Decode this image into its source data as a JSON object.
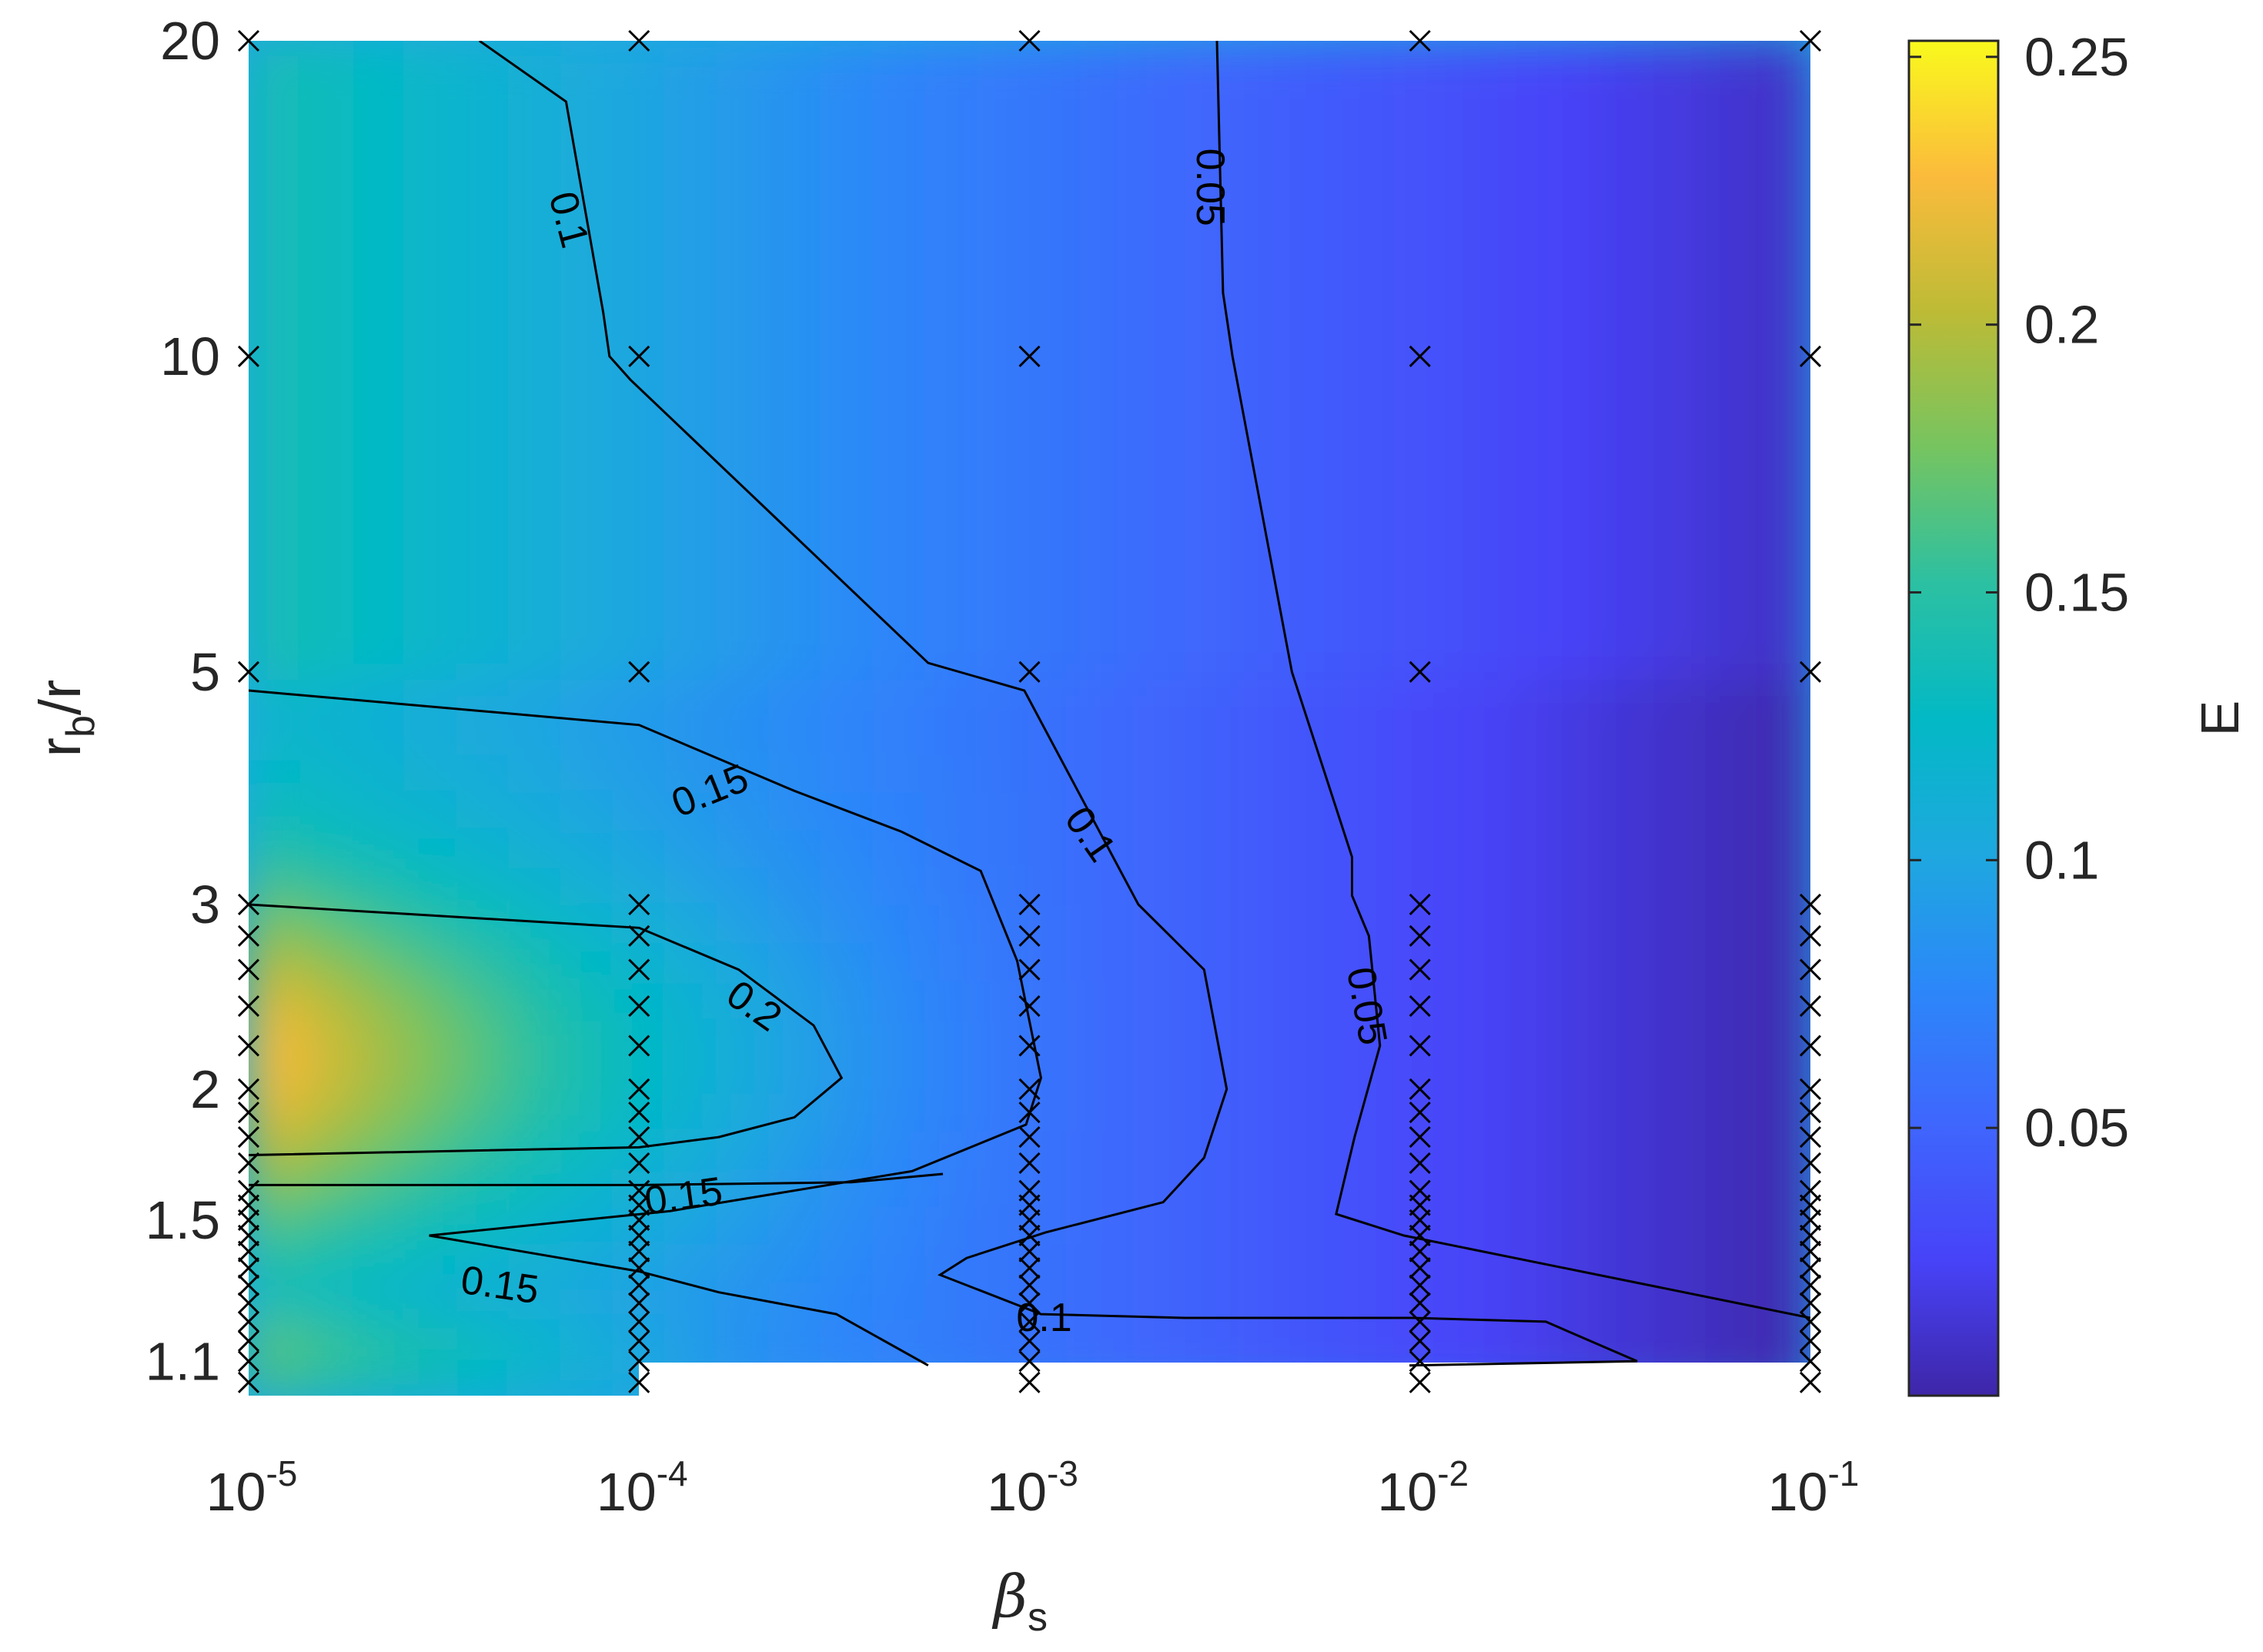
{
  "chart_data": {
    "type": "heatmap",
    "title": "",
    "xlabel": {
      "base": "β",
      "sub": "s"
    },
    "ylabel": {
      "base": "r",
      "sub": "b",
      "rest": "/r"
    },
    "x_scale": "log",
    "y_scale": "log",
    "xlim": [
      1e-05,
      0.1
    ],
    "ylim": [
      1.02,
      20
    ],
    "x_ticks": [
      {
        "value": 1e-05,
        "base": "10",
        "exp": "-5"
      },
      {
        "value": 0.0001,
        "base": "10",
        "exp": "-4"
      },
      {
        "value": 0.001,
        "base": "10",
        "exp": "-3"
      },
      {
        "value": 0.01,
        "base": "10",
        "exp": "-2"
      },
      {
        "value": 0.1,
        "base": "10",
        "exp": "-1"
      }
    ],
    "y_ticks": [
      {
        "value": 1.1,
        "label": "1.1"
      },
      {
        "value": 1.5,
        "label": "1.5"
      },
      {
        "value": 2,
        "label": "2"
      },
      {
        "value": 3,
        "label": "3"
      },
      {
        "value": 5,
        "label": "5"
      },
      {
        "value": 10,
        "label": "10"
      },
      {
        "value": 20,
        "label": "20"
      }
    ],
    "colorbar": {
      "label": "E",
      "range": [
        0.0,
        0.253
      ],
      "colormap": "parula",
      "ticks": [
        {
          "value": 0.05,
          "label": "0.05"
        },
        {
          "value": 0.1,
          "label": "0.1"
        },
        {
          "value": 0.15,
          "label": "0.15"
        },
        {
          "value": 0.2,
          "label": "0.2"
        },
        {
          "value": 0.25,
          "label": "0.25"
        }
      ]
    },
    "sample_x": [
      1e-05,
      0.0001,
      0.001,
      0.01,
      0.1
    ],
    "sample_y": [
      1.05,
      1.1,
      1.15,
      1.2,
      1.25,
      1.3,
      1.35,
      1.4,
      1.45,
      1.5,
      1.55,
      1.6,
      1.7,
      1.8,
      1.9,
      2.0,
      2.2,
      2.4,
      2.6,
      2.8,
      3.0,
      5,
      10,
      20
    ],
    "grid": false,
    "contours": [
      {
        "label": "0.05",
        "points": [
          [
            0.00302,
            20
          ],
          [
            0.00313,
            11.5
          ],
          [
            0.00331,
            10
          ],
          [
            0.0047,
            5
          ],
          [
            0.0067,
            3.33
          ],
          [
            0.0067,
            3.06
          ],
          [
            0.0074,
            2.8
          ],
          [
            0.0079,
            2.2
          ],
          [
            0.0068,
            1.8
          ],
          [
            0.0061,
            1.52
          ],
          [
            0.0091,
            1.45
          ],
          [
            0.1,
            1.21
          ]
        ],
        "labels": [
          [
            0.0029,
            14.5,
            90
          ],
          [
            0.0073,
            2.4,
            80
          ]
        ]
      },
      {
        "label": "0.1",
        "points": [
          [
            3.9e-05,
            20
          ],
          [
            6.5e-05,
            17.5
          ],
          [
            8.1e-05,
            11
          ],
          [
            8.4e-05,
            10
          ],
          [
            9.5e-05,
            9.5
          ],
          [
            0.00055,
            5.1
          ],
          [
            0.00097,
            4.8
          ],
          [
            0.0019,
            3.0
          ],
          [
            0.0028,
            2.6
          ],
          [
            0.0032,
            2.0
          ],
          [
            0.0028,
            1.72
          ],
          [
            0.0022,
            1.56
          ],
          [
            0.0011,
            1.46
          ],
          [
            0.00069,
            1.38
          ],
          [
            0.00059,
            1.33
          ],
          [
            0.00107,
            1.22
          ],
          [
            0.0025,
            1.21
          ],
          [
            0.0046,
            1.21
          ],
          [
            0.0096,
            1.21
          ],
          [
            0.021,
            1.2
          ],
          [
            0.036,
            1.1
          ],
          [
            0.0094,
            1.09
          ]
        ],
        "labels": [
          [
            6.6e-05,
            13.5,
            75
          ],
          [
            0.00143,
            3.5,
            55
          ],
          [
            0.00109,
            1.21,
            0
          ]
        ]
      },
      {
        "label": "0.15",
        "points": [
          [
            1e-05,
            4.8
          ],
          [
            0.0001,
            4.45
          ],
          [
            0.00025,
            3.85
          ],
          [
            0.00047,
            3.52
          ],
          [
            0.00075,
            3.23
          ],
          [
            0.00093,
            2.65
          ],
          [
            0.00107,
            2.05
          ],
          [
            0.00098,
            1.85
          ],
          [
            0.0005,
            1.67
          ],
          [
            0.00012,
            1.53
          ],
          [
            2.9e-05,
            1.45
          ],
          [
            0.0001,
            1.34
          ],
          [
            0.00016,
            1.28
          ],
          [
            0.00032,
            1.22
          ],
          [
            0.00055,
            1.09
          ]
        ],
        "labels": [
          [
            0.000152,
            3.85,
            -22
          ],
          [
            0.00013,
            1.58,
            -8
          ],
          [
            4.4e-05,
            1.3,
            8
          ]
        ]
      },
      {
        "label": "0.15",
        "points": [
          [
            1e-05,
            1.62
          ],
          [
            3.1e-05,
            1.62
          ],
          [
            0.0001,
            1.62
          ],
          [
            0.00035,
            1.63
          ],
          [
            0.0006,
            1.66
          ]
        ],
        "labels": []
      },
      {
        "label": "0.2",
        "points": [
          [
            1e-05,
            3.0
          ],
          [
            0.0001,
            2.85
          ],
          [
            0.00018,
            2.6
          ],
          [
            0.00028,
            2.3
          ],
          [
            0.00033,
            2.05
          ],
          [
            0.00025,
            1.88
          ],
          [
            0.00016,
            1.8
          ],
          [
            0.0001,
            1.76
          ],
          [
            1e-05,
            1.73
          ]
        ],
        "labels": [
          [
            0.000197,
            2.4,
            35
          ]
        ]
      }
    ]
  }
}
